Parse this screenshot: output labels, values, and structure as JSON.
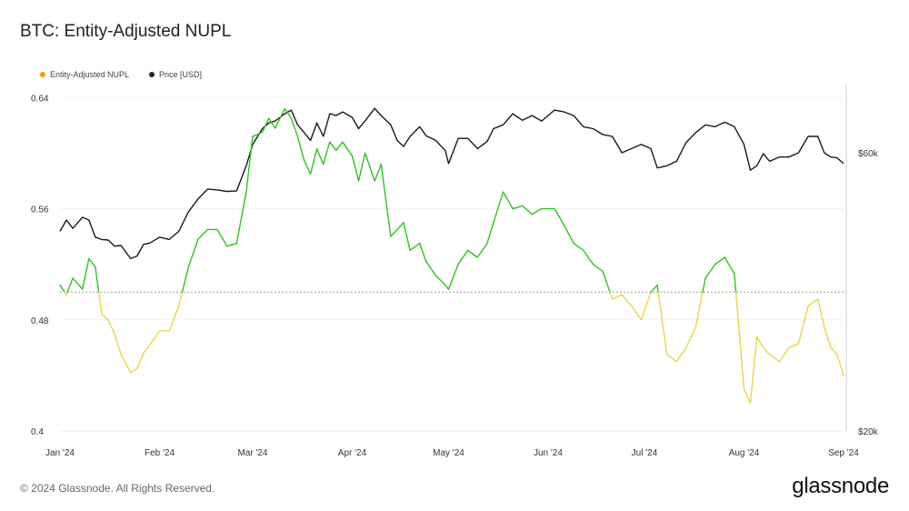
{
  "title": "BTC: Entity-Adjusted NUPL",
  "legend": [
    {
      "label": "Entity-Adjusted NUPL",
      "color": "#f7931a"
    },
    {
      "label": "Price [USD]",
      "color": "#222222"
    }
  ],
  "footer": "© 2024 Glassnode. All Rights Reserved.",
  "brand": "glassnode",
  "chart_data": {
    "type": "line",
    "x_ticks": [
      "Jan '24",
      "Feb '24",
      "Mar '24",
      "Apr '24",
      "May '24",
      "Jun '24",
      "Jul '24",
      "Aug '24",
      "Sep '24"
    ],
    "y_left_ticks": [
      "0.4",
      "0.48",
      "0.56",
      "0.64"
    ],
    "y_right_ticks": [
      "$20k",
      "$60k"
    ],
    "ylim_left": [
      0.4,
      0.65
    ],
    "threshold": 0.5,
    "color_above_threshold": "#2ec41d",
    "color_below_threshold": "#ecd547",
    "price_color": "#1a1a1a",
    "series": [
      {
        "name": "Entity-Adjusted NUPL",
        "x": [
          "2024-01-01",
          "2024-01-03",
          "2024-01-05",
          "2024-01-08",
          "2024-01-10",
          "2024-01-12",
          "2024-01-14",
          "2024-01-16",
          "2024-01-18",
          "2024-01-20",
          "2024-01-23",
          "2024-01-25",
          "2024-01-27",
          "2024-01-29",
          "2024-02-01",
          "2024-02-04",
          "2024-02-07",
          "2024-02-10",
          "2024-02-13",
          "2024-02-16",
          "2024-02-19",
          "2024-02-22",
          "2024-02-25",
          "2024-02-28",
          "2024-03-01",
          "2024-03-04",
          "2024-03-06",
          "2024-03-08",
          "2024-03-11",
          "2024-03-13",
          "2024-03-15",
          "2024-03-17",
          "2024-03-19",
          "2024-03-21",
          "2024-03-23",
          "2024-03-25",
          "2024-03-27",
          "2024-03-29",
          "2024-04-01",
          "2024-04-03",
          "2024-04-05",
          "2024-04-08",
          "2024-04-10",
          "2024-04-13",
          "2024-04-15",
          "2024-04-17",
          "2024-04-19",
          "2024-04-22",
          "2024-04-24",
          "2024-04-27",
          "2024-04-30",
          "2024-05-01",
          "2024-05-04",
          "2024-05-07",
          "2024-05-10",
          "2024-05-13",
          "2024-05-15",
          "2024-05-18",
          "2024-05-21",
          "2024-05-24",
          "2024-05-27",
          "2024-05-30",
          "2024-06-03",
          "2024-06-06",
          "2024-06-09",
          "2024-06-12",
          "2024-06-15",
          "2024-06-18",
          "2024-06-21",
          "2024-06-24",
          "2024-06-27",
          "2024-06-30",
          "2024-07-03",
          "2024-07-05",
          "2024-07-08",
          "2024-07-11",
          "2024-07-14",
          "2024-07-17",
          "2024-07-20",
          "2024-07-23",
          "2024-07-26",
          "2024-07-29",
          "2024-08-01",
          "2024-08-03",
          "2024-08-05",
          "2024-08-07",
          "2024-08-09",
          "2024-08-12",
          "2024-08-15",
          "2024-08-18",
          "2024-08-21",
          "2024-08-24",
          "2024-08-26",
          "2024-08-28",
          "2024-08-30",
          "2024-09-01"
        ],
        "values": [
          0.505,
          0.498,
          0.51,
          0.502,
          0.524,
          0.518,
          0.484,
          0.48,
          0.47,
          0.455,
          0.442,
          0.445,
          0.456,
          0.462,
          0.472,
          0.472,
          0.49,
          0.518,
          0.538,
          0.545,
          0.545,
          0.533,
          0.535,
          0.572,
          0.612,
          0.615,
          0.625,
          0.618,
          0.632,
          0.625,
          0.612,
          0.595,
          0.585,
          0.603,
          0.592,
          0.608,
          0.602,
          0.608,
          0.598,
          0.58,
          0.6,
          0.58,
          0.592,
          0.54,
          0.545,
          0.55,
          0.53,
          0.535,
          0.522,
          0.512,
          0.505,
          0.502,
          0.52,
          0.53,
          0.525,
          0.535,
          0.55,
          0.572,
          0.56,
          0.562,
          0.556,
          0.56,
          0.56,
          0.548,
          0.535,
          0.53,
          0.52,
          0.515,
          0.495,
          0.498,
          0.49,
          0.48,
          0.5,
          0.505,
          0.455,
          0.45,
          0.46,
          0.475,
          0.51,
          0.52,
          0.525,
          0.513,
          0.43,
          0.42,
          0.468,
          0.46,
          0.455,
          0.45,
          0.46,
          0.463,
          0.49,
          0.495,
          0.475,
          0.46,
          0.455,
          0.44
        ]
      },
      {
        "name": "Price [USD]",
        "x": [
          "2024-01-01",
          "2024-01-03",
          "2024-01-05",
          "2024-01-08",
          "2024-01-10",
          "2024-01-12",
          "2024-01-14",
          "2024-01-16",
          "2024-01-18",
          "2024-01-20",
          "2024-01-23",
          "2024-01-25",
          "2024-01-27",
          "2024-01-29",
          "2024-02-01",
          "2024-02-04",
          "2024-02-07",
          "2024-02-10",
          "2024-02-13",
          "2024-02-16",
          "2024-02-19",
          "2024-02-22",
          "2024-02-25",
          "2024-02-28",
          "2024-03-01",
          "2024-03-04",
          "2024-03-06",
          "2024-03-08",
          "2024-03-11",
          "2024-03-13",
          "2024-03-15",
          "2024-03-17",
          "2024-03-19",
          "2024-03-21",
          "2024-03-23",
          "2024-03-25",
          "2024-03-27",
          "2024-03-29",
          "2024-04-01",
          "2024-04-03",
          "2024-04-05",
          "2024-04-08",
          "2024-04-10",
          "2024-04-13",
          "2024-04-15",
          "2024-04-17",
          "2024-04-19",
          "2024-04-22",
          "2024-04-24",
          "2024-04-27",
          "2024-04-30",
          "2024-05-01",
          "2024-05-04",
          "2024-05-07",
          "2024-05-10",
          "2024-05-13",
          "2024-05-15",
          "2024-05-18",
          "2024-05-21",
          "2024-05-24",
          "2024-05-27",
          "2024-05-30",
          "2024-06-03",
          "2024-06-06",
          "2024-06-09",
          "2024-06-12",
          "2024-06-15",
          "2024-06-18",
          "2024-06-21",
          "2024-06-24",
          "2024-06-27",
          "2024-06-30",
          "2024-07-03",
          "2024-07-05",
          "2024-07-08",
          "2024-07-11",
          "2024-07-14",
          "2024-07-17",
          "2024-07-20",
          "2024-07-23",
          "2024-07-26",
          "2024-07-29",
          "2024-08-01",
          "2024-08-03",
          "2024-08-05",
          "2024-08-07",
          "2024-08-09",
          "2024-08-12",
          "2024-08-15",
          "2024-08-18",
          "2024-08-21",
          "2024-08-24",
          "2024-08-26",
          "2024-08-28",
          "2024-08-30",
          "2024-09-01"
        ],
        "values": [
          44000,
          46000,
          44500,
          46500,
          46000,
          43000,
          42600,
          42500,
          41500,
          41600,
          39500,
          39900,
          41800,
          42000,
          43000,
          42600,
          44000,
          47500,
          50000,
          52000,
          51800,
          51500,
          51600,
          57000,
          62000,
          66000,
          67500,
          68000,
          70000,
          71000,
          67000,
          65000,
          63000,
          67500,
          64000,
          70000,
          69500,
          70500,
          69000,
          66000,
          68000,
          71500,
          69500,
          67000,
          63000,
          61500,
          64000,
          66500,
          64200,
          63000,
          60500,
          57500,
          63500,
          63500,
          61000,
          62700,
          66000,
          67000,
          70000,
          68200,
          69500,
          68000,
          71000,
          70500,
          69500,
          66500,
          66000,
          64500,
          64000,
          60000,
          61000,
          62000,
          61000,
          56500,
          57000,
          58000,
          62500,
          65000,
          67000,
          66500,
          67700,
          66500,
          62000,
          56000,
          57000,
          59800,
          58000,
          59000,
          59000,
          60000,
          64000,
          64000,
          60000,
          59000,
          58800,
          57500
        ]
      }
    ]
  }
}
